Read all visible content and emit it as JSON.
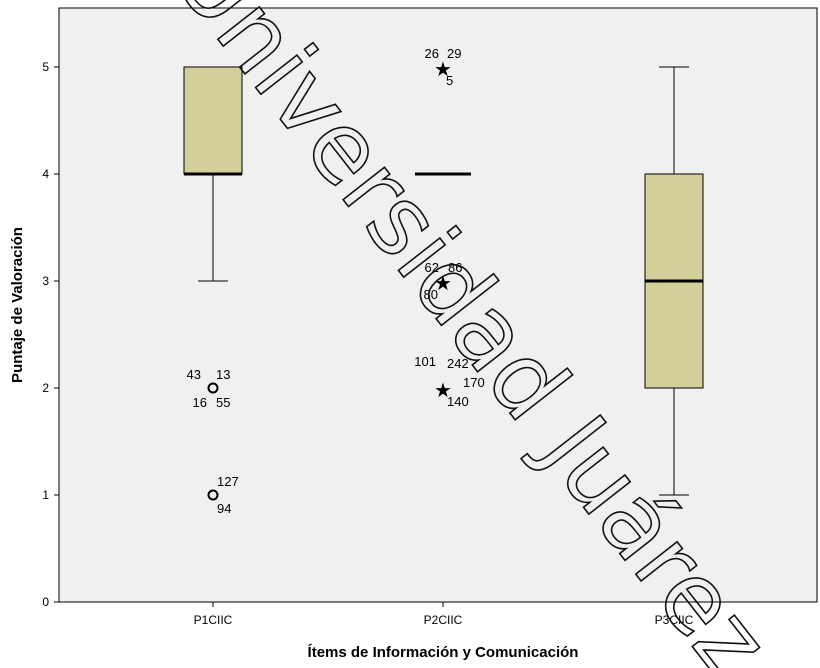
{
  "chart_data": {
    "type": "boxplot",
    "title": "",
    "xlabel": "Ítems de Información y Comunicación",
    "ylabel": "Puntaje de Valoración",
    "ylim": [
      0,
      5.5
    ],
    "yticks": [
      0,
      1,
      2,
      3,
      4,
      5
    ],
    "grid": false,
    "categories": [
      "P1CIIC",
      "P2CIIC",
      "P3CIIC"
    ],
    "series": [
      {
        "category": "P1CIIC",
        "whisker_low": 3,
        "q1": 4,
        "median": 4,
        "q3": 5,
        "whisker_high": 5,
        "outliers": [
          {
            "value": 2,
            "marker": "circle",
            "cases": [
              "43",
              "13",
              "16",
              "55"
            ]
          },
          {
            "value": 1,
            "marker": "circle",
            "cases": [
              "127",
              "94"
            ]
          }
        ]
      },
      {
        "category": "P2CIIC",
        "whisker_low": 4,
        "q1": 4,
        "median": 4,
        "q3": 4,
        "whisker_high": 4,
        "outliers": [
          {
            "value": 5,
            "marker": "star",
            "cases": [
              "26",
              "29",
              "5"
            ]
          },
          {
            "value": 3,
            "marker": "star",
            "cases": [
              "62",
              "86",
              "80"
            ]
          },
          {
            "value": 2,
            "marker": "star",
            "cases": [
              "101",
              "242",
              "170",
              "140"
            ]
          }
        ]
      },
      {
        "category": "P3CIIC",
        "whisker_low": 1,
        "q1": 2,
        "median": 3,
        "q3": 4,
        "whisker_high": 5,
        "outliers": []
      }
    ],
    "colors": {
      "box_fill": "#d4d09c",
      "plot_background": "#f0f0f0",
      "line": "#000000"
    }
  },
  "watermark": "Universidad Juárez"
}
